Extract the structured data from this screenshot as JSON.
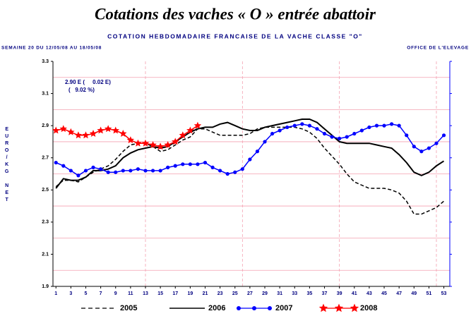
{
  "chart_data": {
    "type": "line",
    "title": "Cotations des vaches « O » entrée abattoir",
    "subtitle": "COTATION HEBDOMADAIRE FRANCAISE DE LA VACHE CLASSE \"O\"",
    "period": "SEMAINE 20 DU 12/05/08 AU 18/05/08",
    "source": "OFFICE DE L'ELEVAGE",
    "y_label": "EURO/KG NET",
    "annotations": [
      "2.90 E (     0.02 E)",
      "(   9.02 %)"
    ],
    "x": [
      1,
      2,
      3,
      4,
      5,
      6,
      7,
      8,
      9,
      10,
      11,
      12,
      13,
      14,
      15,
      16,
      17,
      18,
      19,
      20,
      21,
      22,
      23,
      24,
      25,
      26,
      27,
      28,
      29,
      30,
      31,
      32,
      33,
      34,
      35,
      36,
      37,
      38,
      39,
      40,
      41,
      42,
      43,
      44,
      45,
      46,
      47,
      48,
      49,
      50,
      51,
      52,
      53
    ],
    "xlim": [
      0.6,
      53.8
    ],
    "xticks": [
      1,
      3,
      5,
      7,
      9,
      11,
      13,
      15,
      17,
      19,
      21,
      23,
      25,
      27,
      29,
      31,
      33,
      35,
      37,
      39,
      41,
      43,
      45,
      47,
      49,
      51,
      53
    ],
    "xgrid": [
      13,
      26,
      39,
      52
    ],
    "ylim": [
      1.9,
      3.3
    ],
    "yticks": [
      1.9,
      2.1,
      2.3,
      2.5,
      2.7,
      2.9,
      3.1,
      3.3
    ],
    "ygrid": [
      2.0,
      2.2,
      2.4,
      2.6,
      2.8,
      3.0,
      3.2
    ],
    "grid_color": "#f4a0b0",
    "series": [
      {
        "name": "2005",
        "color": "#000000",
        "dash": true,
        "marker": "none",
        "values": [
          2.52,
          2.56,
          2.56,
          2.55,
          2.58,
          2.61,
          2.63,
          2.65,
          2.69,
          2.74,
          2.78,
          2.79,
          2.79,
          2.77,
          2.74,
          2.75,
          2.78,
          2.81,
          2.83,
          2.88,
          2.88,
          2.86,
          2.84,
          2.84,
          2.84,
          2.84,
          2.85,
          2.88,
          2.89,
          2.89,
          2.89,
          2.89,
          2.89,
          2.88,
          2.86,
          2.82,
          2.76,
          2.71,
          2.66,
          2.6,
          2.55,
          2.53,
          2.51,
          2.51,
          2.51,
          2.5,
          2.48,
          2.43,
          2.35,
          2.35,
          2.37,
          2.39,
          2.43
        ]
      },
      {
        "name": "2006",
        "color": "#000000",
        "dash": false,
        "marker": "none",
        "values": [
          2.51,
          2.57,
          2.56,
          2.56,
          2.58,
          2.62,
          2.62,
          2.63,
          2.65,
          2.7,
          2.73,
          2.75,
          2.76,
          2.77,
          2.76,
          2.77,
          2.8,
          2.83,
          2.86,
          2.88,
          2.89,
          2.89,
          2.91,
          2.92,
          2.9,
          2.88,
          2.87,
          2.87,
          2.89,
          2.9,
          2.91,
          2.92,
          2.93,
          2.94,
          2.94,
          2.92,
          2.88,
          2.84,
          2.8,
          2.79,
          2.79,
          2.79,
          2.79,
          2.78,
          2.77,
          2.76,
          2.72,
          2.67,
          2.61,
          2.59,
          2.61,
          2.65,
          2.68
        ]
      },
      {
        "name": "2007",
        "color": "#0000ff",
        "dash": false,
        "marker": "circle",
        "values": [
          2.67,
          2.65,
          2.62,
          2.59,
          2.62,
          2.64,
          2.63,
          2.61,
          2.61,
          2.62,
          2.62,
          2.63,
          2.62,
          2.62,
          2.62,
          2.64,
          2.65,
          2.66,
          2.66,
          2.66,
          2.67,
          2.64,
          2.62,
          2.6,
          2.61,
          2.63,
          2.69,
          2.74,
          2.8,
          2.85,
          2.87,
          2.89,
          2.9,
          2.91,
          2.9,
          2.88,
          2.85,
          2.83,
          2.82,
          2.83,
          2.85,
          2.87,
          2.89,
          2.9,
          2.9,
          2.91,
          2.9,
          2.84,
          2.77,
          2.74,
          2.76,
          2.79,
          2.84
        ]
      },
      {
        "name": "2008",
        "color": "#ff0000",
        "dash": false,
        "marker": "star",
        "values": [
          2.87,
          2.88,
          2.86,
          2.84,
          2.84,
          2.85,
          2.87,
          2.88,
          2.87,
          2.85,
          2.81,
          2.79,
          2.79,
          2.78,
          2.77,
          2.78,
          2.8,
          2.84,
          2.87,
          2.9,
          null,
          null,
          null,
          null,
          null,
          null,
          null,
          null,
          null,
          null,
          null,
          null,
          null,
          null,
          null,
          null,
          null,
          null,
          null,
          null,
          null,
          null,
          null,
          null,
          null,
          null,
          null,
          null,
          null,
          null,
          null,
          null,
          null
        ]
      }
    ]
  }
}
